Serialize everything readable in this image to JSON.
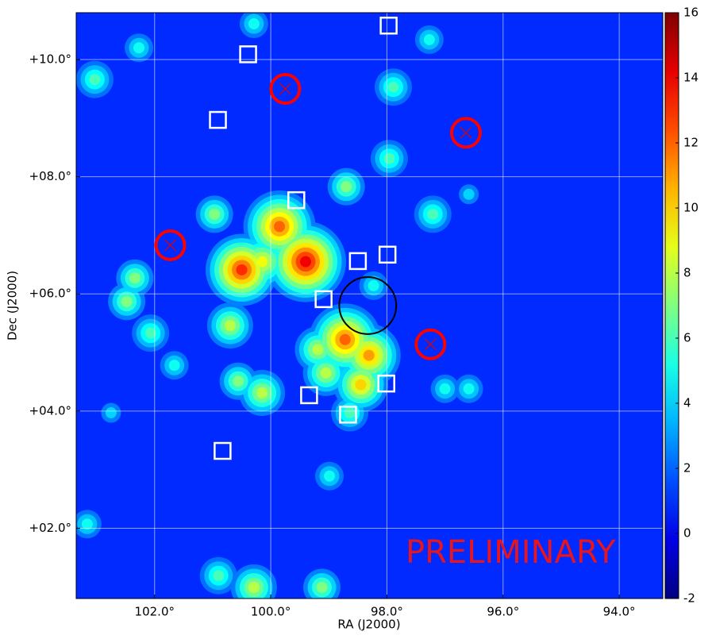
{
  "chart_data": {
    "type": "skymap",
    "x_label": "RA (J2000)",
    "y_label": "Dec (J2000)",
    "annotation": "PRELIMINARY",
    "xlim": [
      103.35,
      93.25
    ],
    "ylim": [
      0.8,
      10.8
    ],
    "xticks": [
      {
        "value": 102,
        "label": "102.0°"
      },
      {
        "value": 100,
        "label": "100.0°"
      },
      {
        "value": 98,
        "label": "98.0°"
      },
      {
        "value": 96,
        "label": "96.0°"
      },
      {
        "value": 94,
        "label": "94.0°"
      }
    ],
    "yticks": [
      {
        "value": 2,
        "label": "+02.0°"
      },
      {
        "value": 4,
        "label": "+04.0°"
      },
      {
        "value": 6,
        "label": "+06.0°"
      },
      {
        "value": 8,
        "label": "+08.0°"
      },
      {
        "value": 10,
        "label": "+10.0°"
      }
    ],
    "clim": [
      -2,
      16
    ],
    "cticks": [
      -2,
      0,
      2,
      4,
      6,
      8,
      10,
      12,
      14,
      16
    ],
    "colormap": "jet",
    "grid": true,
    "background": 1,
    "hotspots": [
      {
        "ra": 100.5,
        "dec": 6.41,
        "value": 13
      },
      {
        "ra": 99.4,
        "dec": 6.55,
        "value": 14
      },
      {
        "ra": 99.85,
        "dec": 7.15,
        "value": 12
      },
      {
        "ra": 98.72,
        "dec": 5.22,
        "value": 12
      },
      {
        "ra": 98.31,
        "dec": 4.95,
        "value": 11
      },
      {
        "ra": 98.45,
        "dec": 4.45,
        "value": 10
      },
      {
        "ra": 100.15,
        "dec": 6.55,
        "value": 9
      },
      {
        "ra": 100.7,
        "dec": 5.46,
        "value": 8
      },
      {
        "ra": 100.56,
        "dec": 4.51,
        "value": 7
      },
      {
        "ra": 100.15,
        "dec": 4.31,
        "value": 8
      },
      {
        "ra": 99.19,
        "dec": 5.05,
        "value": 8
      },
      {
        "ra": 99.05,
        "dec": 4.65,
        "value": 8
      },
      {
        "ra": 98.64,
        "dec": 3.97,
        "value": 6
      },
      {
        "ra": 102.48,
        "dec": 5.87,
        "value": 7
      },
      {
        "ra": 102.34,
        "dec": 6.27,
        "value": 7
      },
      {
        "ra": 102.07,
        "dec": 5.33,
        "value": 6
      },
      {
        "ra": 100.97,
        "dec": 7.36,
        "value": 7
      },
      {
        "ra": 98.7,
        "dec": 7.83,
        "value": 7
      },
      {
        "ra": 97.96,
        "dec": 8.31,
        "value": 6
      },
      {
        "ra": 97.89,
        "dec": 9.53,
        "value": 6
      },
      {
        "ra": 97.21,
        "dec": 7.36,
        "value": 6
      },
      {
        "ra": 103.03,
        "dec": 9.66,
        "value": 6
      },
      {
        "ra": 102.27,
        "dec": 10.2,
        "value": 5
      },
      {
        "ra": 100.29,
        "dec": 0.99,
        "value": 8
      },
      {
        "ra": 99.12,
        "dec": 0.99,
        "value": 7
      },
      {
        "ra": 100.9,
        "dec": 1.19,
        "value": 6
      },
      {
        "ra": 103.16,
        "dec": 2.07,
        "value": 5
      },
      {
        "ra": 98.99,
        "dec": 2.89,
        "value": 5
      },
      {
        "ra": 97.0,
        "dec": 4.38,
        "value": 5
      },
      {
        "ra": 96.59,
        "dec": 4.38,
        "value": 5
      },
      {
        "ra": 100.29,
        "dec": 10.61,
        "value": 5
      },
      {
        "ra": 97.27,
        "dec": 10.34,
        "value": 5
      },
      {
        "ra": 98.23,
        "dec": 6.14,
        "value": 5
      },
      {
        "ra": 101.66,
        "dec": 4.78,
        "value": 5
      },
      {
        "ra": 102.75,
        "dec": 3.97,
        "value": 4
      },
      {
        "ra": 96.59,
        "dec": 7.7,
        "value": 4
      }
    ],
    "squares": [
      {
        "ra": 97.97,
        "dec": 10.58
      },
      {
        "ra": 100.39,
        "dec": 10.09
      },
      {
        "ra": 100.91,
        "dec": 8.97
      },
      {
        "ra": 99.56,
        "dec": 7.6
      },
      {
        "ra": 98.5,
        "dec": 6.56
      },
      {
        "ra": 97.99,
        "dec": 6.67
      },
      {
        "ra": 99.09,
        "dec": 5.91
      },
      {
        "ra": 99.34,
        "dec": 4.27
      },
      {
        "ra": 98.01,
        "dec": 4.47
      },
      {
        "ra": 98.67,
        "dec": 3.94
      },
      {
        "ra": 100.83,
        "dec": 3.32
      }
    ],
    "circles": [
      {
        "ra": 99.75,
        "dec": 9.5
      },
      {
        "ra": 96.64,
        "dec": 8.75
      },
      {
        "ra": 101.73,
        "dec": 6.83
      },
      {
        "ra": 97.25,
        "dec": 5.14
      }
    ],
    "region": {
      "ra": 98.33,
      "dec": 5.8,
      "radius": 0.49
    }
  }
}
